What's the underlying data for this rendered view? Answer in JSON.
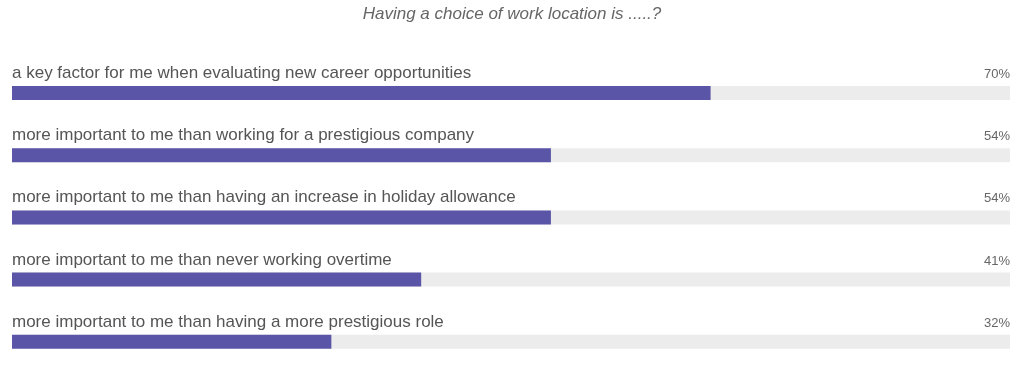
{
  "chart_data": {
    "type": "bar",
    "orientation": "horizontal",
    "title": "Having a choice of work location is .....?",
    "categories": [
      "a key factor for me when evaluating new career opportunities",
      "more important to me than working for a prestigious company",
      "more important to me than having an increase in holiday allowance",
      "more important to me than never working overtime",
      "more important to me than having a more prestigious role"
    ],
    "values": [
      70,
      54,
      54,
      41,
      32
    ],
    "value_labels": [
      "70%",
      "54%",
      "54%",
      "41%",
      "32%"
    ],
    "color": "#5b55a8",
    "xlim": [
      0,
      100
    ],
    "tick_labels": false
  }
}
